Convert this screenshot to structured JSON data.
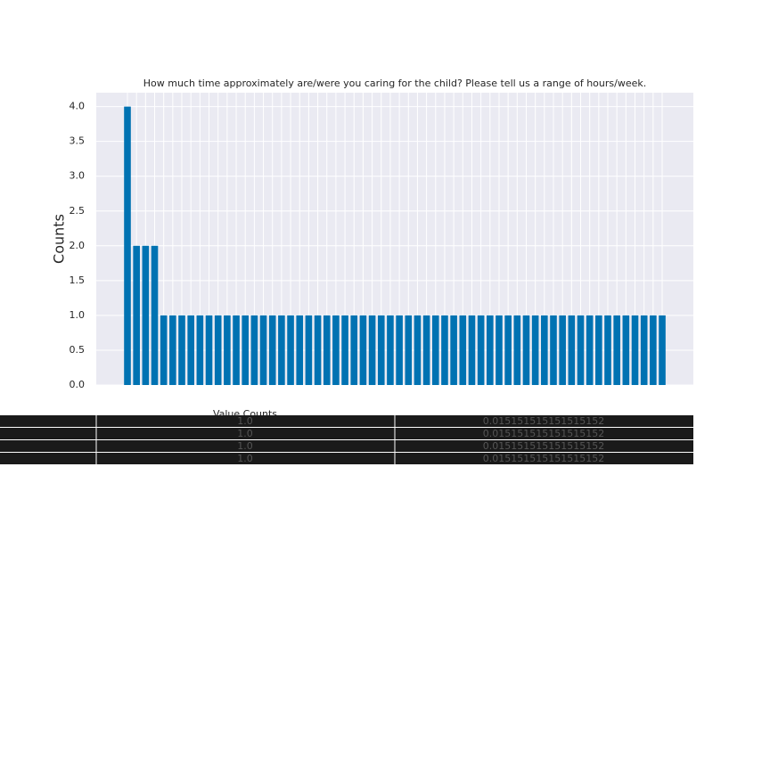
{
  "chart_data": {
    "type": "bar",
    "title": "How much time approximately are/were you caring for the child?  Please tell us a range of hours/week.",
    "y_label": "Counts",
    "categories": [
      null,
      null,
      null,
      null,
      null,
      null,
      null,
      null,
      null,
      null,
      null,
      null,
      null,
      null,
      null,
      null,
      null,
      null,
      null,
      null,
      null,
      null,
      null,
      null,
      null,
      null,
      null,
      null,
      null,
      null,
      null,
      null,
      null,
      null,
      null,
      null,
      null,
      null,
      null,
      null,
      null,
      null,
      null,
      null,
      null,
      null,
      null,
      null,
      null,
      null,
      null,
      null,
      null,
      null,
      null,
      null,
      null,
      null,
      null,
      null
    ],
    "values": [
      4,
      2,
      2,
      2,
      1,
      1,
      1,
      1,
      1,
      1,
      1,
      1,
      1,
      1,
      1,
      1,
      1,
      1,
      1,
      1,
      1,
      1,
      1,
      1,
      1,
      1,
      1,
      1,
      1,
      1,
      1,
      1,
      1,
      1,
      1,
      1,
      1,
      1,
      1,
      1,
      1,
      1,
      1,
      1,
      1,
      1,
      1,
      1,
      1,
      1,
      1,
      1,
      1,
      1,
      1,
      1,
      1,
      1,
      1,
      1
    ],
    "color": "#0072b2",
    "ylim": [
      0,
      4.2
    ],
    "yticks": [
      {
        "value": 0,
        "label": "0.0"
      },
      {
        "value": 0.5,
        "label": "0.5"
      },
      {
        "value": 1,
        "label": "1.0"
      },
      {
        "value": 1.5,
        "label": "1.5"
      },
      {
        "value": 2,
        "label": "2.0"
      },
      {
        "value": 2.5,
        "label": "2.5"
      },
      {
        "value": 3,
        "label": "3.0"
      },
      {
        "value": 3.5,
        "label": "3.5"
      },
      {
        "value": 4,
        "label": "4.0"
      }
    ],
    "grid": true
  },
  "table": {
    "header": "Value Counts",
    "rows": [
      [
        "1.0",
        "0.015151515151515152"
      ],
      [
        "1.0",
        "0.015151515151515152"
      ],
      [
        "1.0",
        "0.015151515151515152"
      ],
      [
        "1.0",
        "0.015151515151515152"
      ]
    ]
  }
}
